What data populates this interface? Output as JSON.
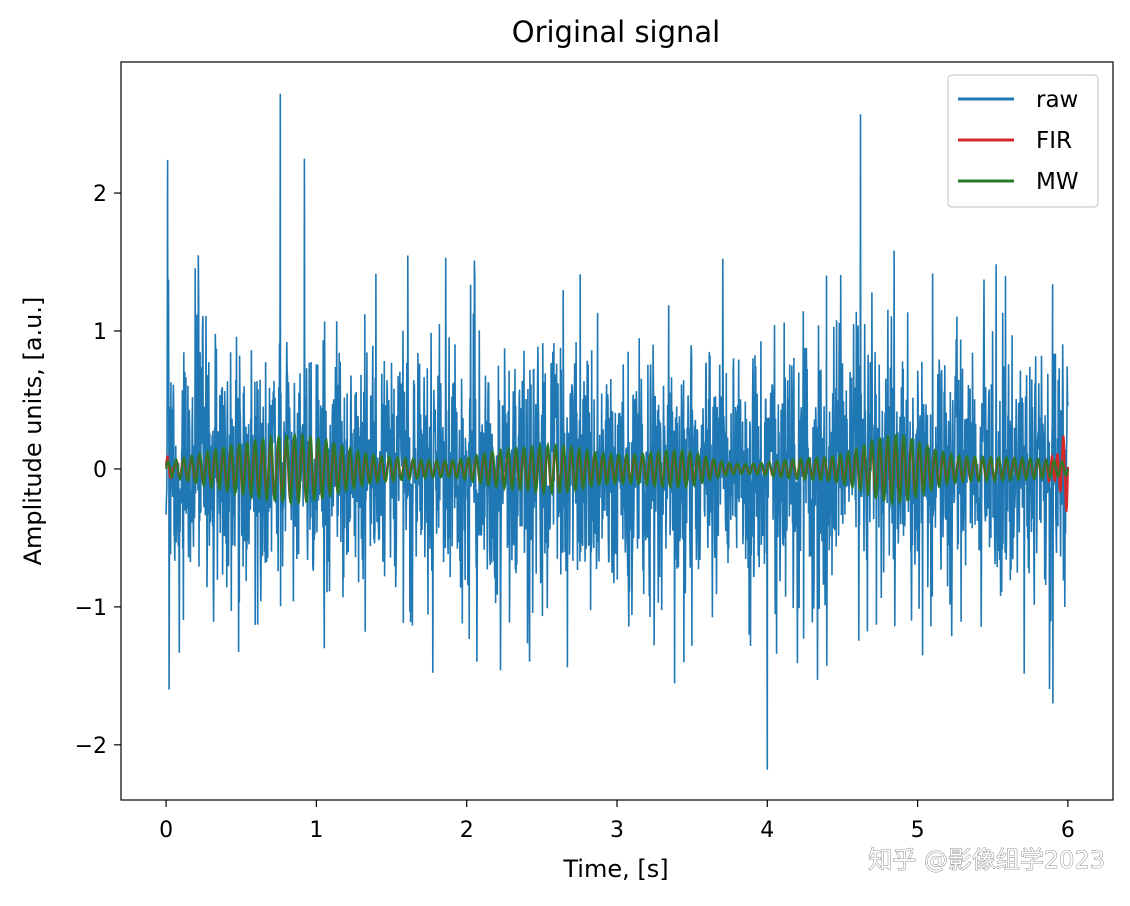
{
  "chart_data": {
    "type": "line",
    "title": "Original signal",
    "xlabel": "Time, [s]",
    "ylabel": "Amplitude units, [a.u.]",
    "xlim": [
      -0.3,
      6.3
    ],
    "ylim": [
      -2.4,
      2.95
    ],
    "xticks": [
      0,
      1,
      2,
      3,
      4,
      5,
      6
    ],
    "yticks": [
      -2,
      -1,
      0,
      1,
      2
    ],
    "xtick_labels": [
      "0",
      "1",
      "2",
      "3",
      "4",
      "5",
      "6"
    ],
    "ytick_labels": [
      "−2",
      "−1",
      "0",
      "1",
      "2"
    ],
    "grid": false,
    "legend_position": "top-right",
    "series": [
      {
        "name": "raw",
        "color": "#1f77b4",
        "description": "dense noisy oscillation, envelope approx ±1.2 with spikes",
        "sample_peaks": [
          {
            "x": 0.01,
            "y": 2.24
          },
          {
            "x": 0.76,
            "y": 2.72
          },
          {
            "x": 0.92,
            "y": 2.25
          },
          {
            "x": 4.62,
            "y": 2.57
          },
          {
            "x": 4.0,
            "y": -2.18
          },
          {
            "x": 0.02,
            "y": -1.6
          },
          {
            "x": 5.9,
            "y": -1.7
          }
        ]
      },
      {
        "name": "FIR",
        "color": "#d62728",
        "description": "low-amplitude filtered signal around 0, edge artifact near 6 s up to about ±0.3"
      },
      {
        "name": "MW",
        "color": "#2a7a2a",
        "description": "moving window filtered signal, bursts up to about ±0.25 around 0"
      }
    ]
  },
  "watermark": "知乎 @影像组学2023"
}
